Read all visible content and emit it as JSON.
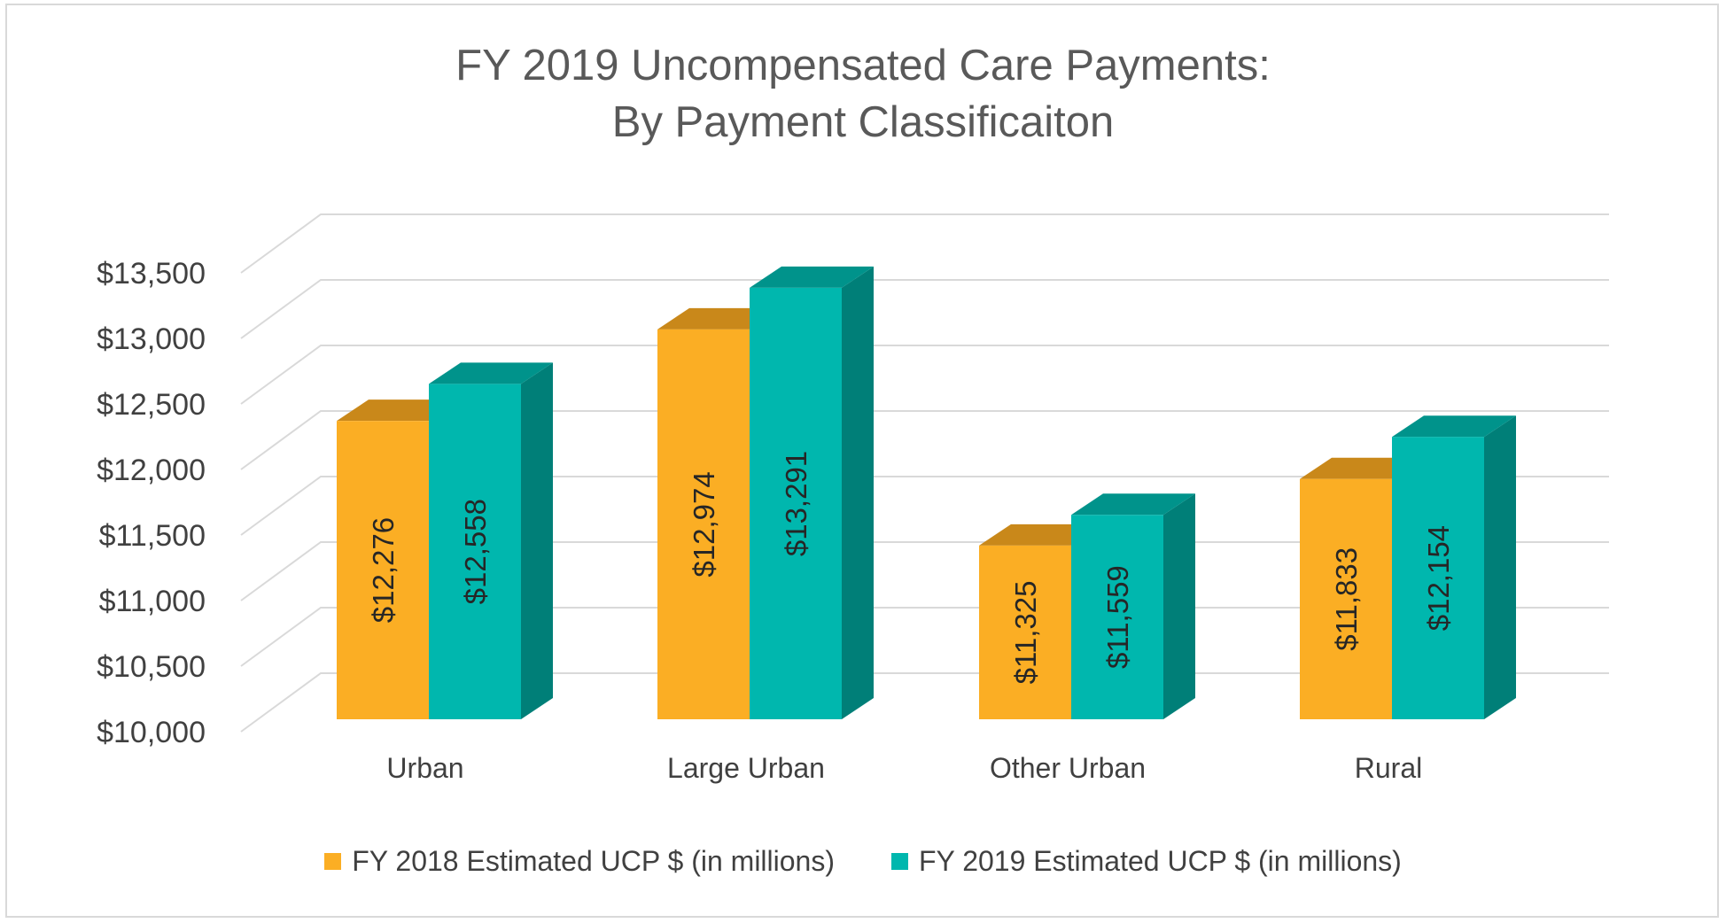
{
  "chart_data": {
    "type": "bar",
    "title": [
      "FY 2019 Uncompensated Care Payments:",
      "By Payment Classificaiton"
    ],
    "categories": [
      "Urban",
      "Large Urban",
      "Other Urban",
      "Rural"
    ],
    "series": [
      {
        "name": "FY 2018 Estimated UCP $ (in millions)",
        "values": [
          12276,
          12974,
          11325,
          11833
        ],
        "labels": [
          "$12,276",
          "$12,974",
          "$11,325",
          "$11,833"
        ],
        "color": "#FBAE24",
        "top_color": "#C9881A",
        "side_color": "#B67A14"
      },
      {
        "name": "FY 2019 Estimated UCP $ (in millions)",
        "values": [
          12558,
          13291,
          11559,
          12154
        ],
        "labels": [
          "$12,558",
          "$13,291",
          "$11,559",
          "$12,154"
        ],
        "color": "#00B7AE",
        "top_color": "#00938B",
        "side_color": "#007F78"
      }
    ],
    "yticks": [
      10000,
      10500,
      11000,
      11500,
      12000,
      12500,
      13000,
      13500
    ],
    "ytick_labels": [
      "$10,000",
      "$10,500",
      "$11,000",
      "$11,500",
      "$12,000",
      "$12,500",
      "$13,000",
      "$13,500"
    ],
    "ylim": [
      10000,
      13500
    ],
    "grid": true,
    "style": "3d-clustered-column",
    "legend": "bottom"
  }
}
